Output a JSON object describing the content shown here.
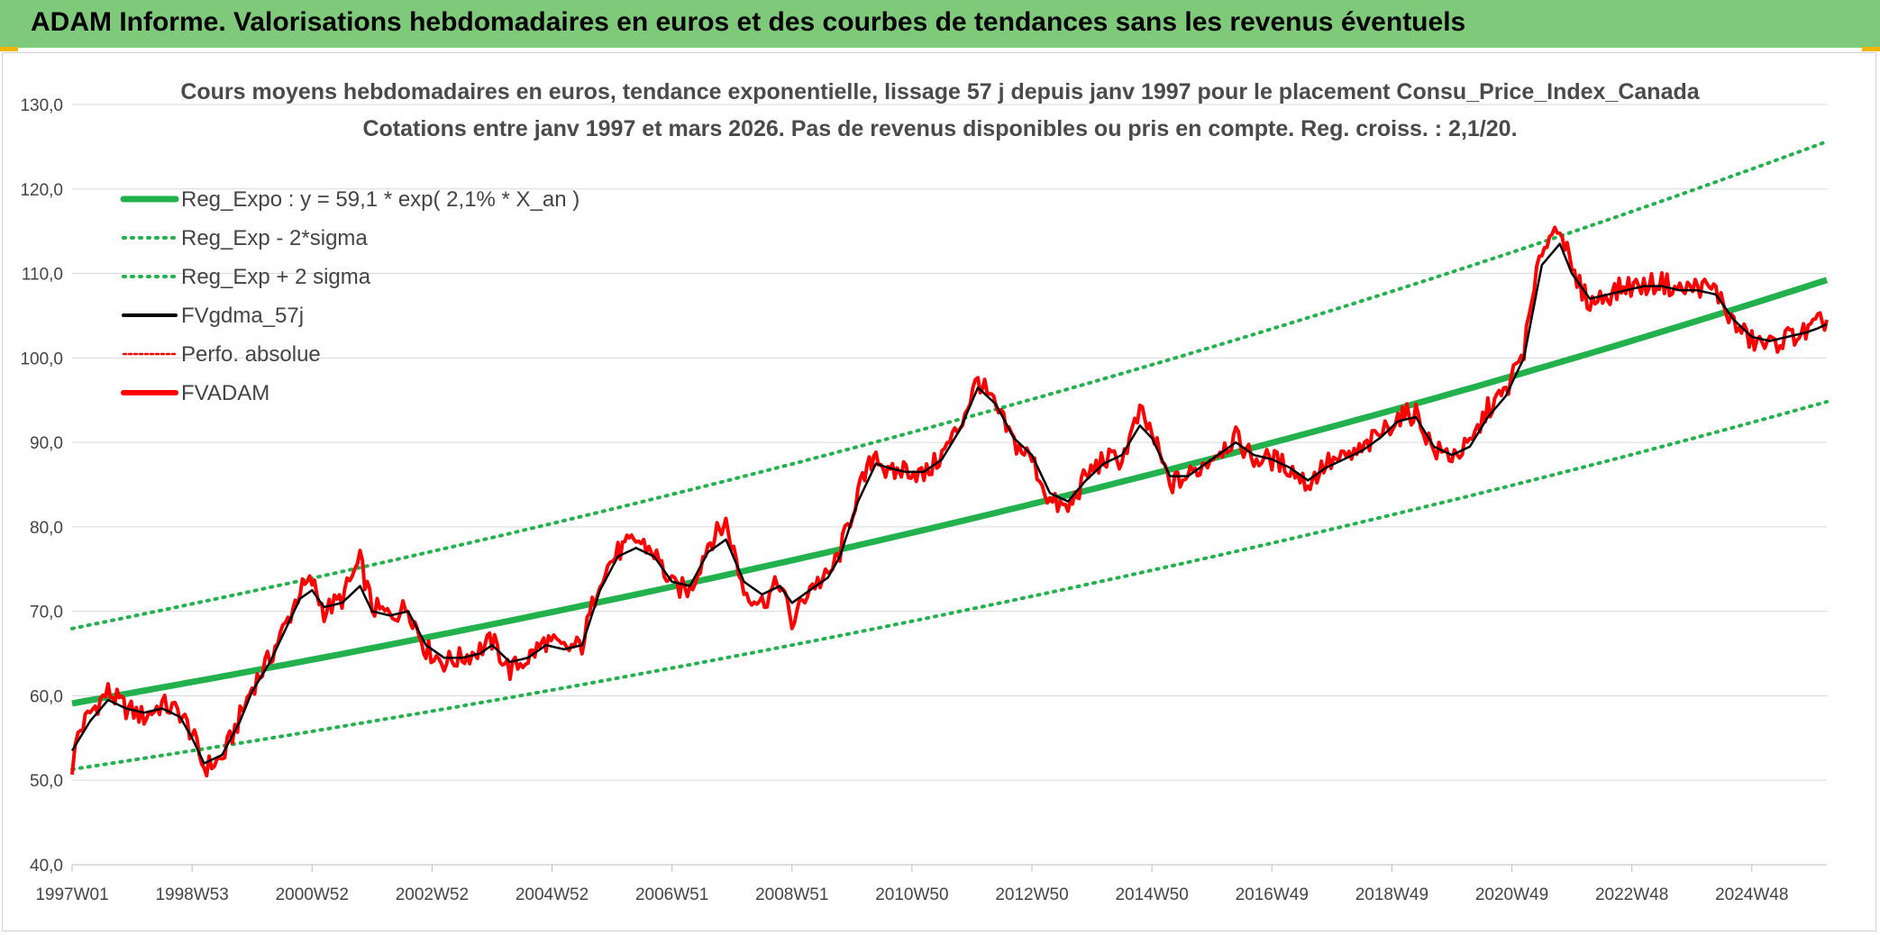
{
  "header": {
    "title": "ADAM Informe. Valorisations hebdomadaires en euros et des courbes de tendances sans les revenus éventuels"
  },
  "colors": {
    "header_bg": "#7fc97a",
    "green": "#22b14c",
    "red": "#ff0000",
    "black": "#000000",
    "grid": "#d9d9d9"
  },
  "chart_data": {
    "type": "line",
    "title": "Cours moyens hebdomadaires en euros, tendance exponentielle, lissage 57 j depuis janv 1997 pour le placement Consu_Price_Index_Canada",
    "subtitle": "Cotations entre janv 1997 et mars 2026. Pas de revenus disponibles ou pris en compte. Reg. croiss. : 2,1/20.",
    "ylim": [
      40,
      130
    ],
    "yticks": [
      "40,0",
      "50,0",
      "60,0",
      "70,0",
      "80,0",
      "90,0",
      "100,0",
      "110,0",
      "120,0",
      "130,0"
    ],
    "xlim": [
      1997.0,
      2026.25
    ],
    "xticks": [
      {
        "label": "1997W01",
        "x": 1997.0
      },
      {
        "label": "1998W53",
        "x": 1999.0
      },
      {
        "label": "2000W52",
        "x": 2001.0
      },
      {
        "label": "2002W52",
        "x": 2003.0
      },
      {
        "label": "2004W52",
        "x": 2005.0
      },
      {
        "label": "2006W51",
        "x": 2007.0
      },
      {
        "label": "2008W51",
        "x": 2009.0
      },
      {
        "label": "2010W50",
        "x": 2011.0
      },
      {
        "label": "2012W50",
        "x": 2013.0
      },
      {
        "label": "2014W50",
        "x": 2015.0
      },
      {
        "label": "2016W49",
        "x": 2017.0
      },
      {
        "label": "2018W49",
        "x": 2019.0
      },
      {
        "label": "2020W49",
        "x": 2021.0
      },
      {
        "label": "2022W48",
        "x": 2023.0
      },
      {
        "label": "2024W48",
        "x": 2025.0
      }
    ],
    "legend": [
      {
        "label": "Reg_Expo : y = 59,1 * exp( 2,1% *  X_an )",
        "style": "thick-green"
      },
      {
        "label": "Reg_Exp - 2*sigma",
        "style": "dotted-green"
      },
      {
        "label": "Reg_Exp + 2 sigma",
        "style": "dotted-green"
      },
      {
        "label": "FVgdma_57j",
        "style": "black"
      },
      {
        "label": "Perfo. absolue",
        "style": "dotted-red"
      },
      {
        "label": "FVADAM",
        "style": "thick-red"
      }
    ],
    "regression": {
      "a": 59.1,
      "rate": 0.021,
      "lower_factor": 0.868,
      "upper_factor": 1.15
    },
    "series": [
      {
        "name": "FVADAM",
        "x": [
          1997.0,
          1997.1,
          1997.3,
          1997.6,
          1997.9,
          1998.2,
          1998.5,
          1998.8,
          1999.0,
          1999.2,
          1999.5,
          1999.8,
          2000.0,
          2000.3,
          2000.6,
          2000.8,
          2001.0,
          2001.2,
          2001.5,
          2001.8,
          2002.0,
          2002.3,
          2002.6,
          2002.9,
          2003.2,
          2003.5,
          2003.8,
          2004.0,
          2004.3,
          2004.6,
          2004.9,
          2005.2,
          2005.5,
          2005.8,
          2006.1,
          2006.4,
          2006.7,
          2007.0,
          2007.3,
          2007.6,
          2007.9,
          2008.2,
          2008.5,
          2008.8,
          2009.0,
          2009.3,
          2009.6,
          2009.8,
          2010.1,
          2010.4,
          2010.6,
          2010.9,
          2011.2,
          2011.5,
          2011.8,
          2012.1,
          2012.4,
          2012.7,
          2013.0,
          2013.3,
          2013.6,
          2013.9,
          2014.2,
          2014.5,
          2014.8,
          2015.0,
          2015.3,
          2015.6,
          2015.8,
          2016.1,
          2016.4,
          2016.7,
          2017.0,
          2017.3,
          2017.6,
          2017.9,
          2018.2,
          2018.5,
          2018.8,
          2019.1,
          2019.4,
          2019.7,
          2020.0,
          2020.3,
          2020.6,
          2020.9,
          2021.2,
          2021.5,
          2021.8,
          2022.0,
          2022.3,
          2022.6,
          2022.9,
          2023.2,
          2023.5,
          2023.8,
          2024.1,
          2024.4,
          2024.7,
          2025.0,
          2025.3,
          2025.6,
          2025.9,
          2026.1,
          2026.25
        ],
        "y": [
          51.5,
          55.5,
          58.0,
          60.5,
          58.5,
          57.5,
          59.0,
          58.0,
          55.5,
          51.5,
          52.5,
          57.5,
          61.0,
          64.5,
          69.0,
          72.5,
          73.5,
          70.0,
          71.5,
          76.0,
          70.5,
          69.5,
          70.5,
          65.5,
          64.0,
          64.5,
          65.5,
          66.5,
          63.0,
          64.5,
          66.5,
          65.5,
          66.0,
          74.0,
          77.0,
          78.5,
          77.0,
          73.0,
          72.5,
          78.0,
          80.5,
          72.5,
          71.0,
          73.5,
          68.5,
          73.0,
          74.0,
          77.0,
          84.0,
          89.0,
          86.0,
          87.0,
          86.0,
          88.5,
          92.0,
          97.5,
          94.0,
          90.0,
          88.0,
          83.0,
          82.0,
          86.0,
          88.0,
          88.0,
          93.5,
          91.0,
          85.0,
          86.0,
          87.0,
          89.0,
          90.5,
          88.0,
          88.0,
          87.0,
          85.0,
          87.5,
          88.0,
          89.0,
          91.0,
          93.0,
          93.5,
          89.0,
          88.5,
          89.5,
          94.0,
          96.0,
          101.0,
          113.0,
          116.0,
          110.0,
          106.5,
          107.5,
          108.5,
          108.5,
          109.0,
          108.0,
          108.5,
          108.0,
          104.0,
          102.0,
          101.5,
          102.5,
          103.0,
          104.0,
          104.5
        ]
      },
      {
        "name": "FVgdma_57j",
        "x": [
          1997.0,
          1997.3,
          1997.6,
          1997.9,
          1998.2,
          1998.5,
          1998.8,
          1999.0,
          1999.2,
          1999.5,
          1999.8,
          2000.0,
          2000.3,
          2000.6,
          2000.8,
          2001.0,
          2001.2,
          2001.5,
          2001.8,
          2002.0,
          2002.3,
          2002.6,
          2002.9,
          2003.2,
          2003.5,
          2003.8,
          2004.0,
          2004.3,
          2004.6,
          2004.9,
          2005.2,
          2005.5,
          2005.8,
          2006.1,
          2006.4,
          2006.7,
          2007.0,
          2007.3,
          2007.6,
          2007.9,
          2008.2,
          2008.5,
          2008.8,
          2009.0,
          2009.3,
          2009.6,
          2009.8,
          2010.1,
          2010.4,
          2010.6,
          2010.9,
          2011.2,
          2011.5,
          2011.8,
          2012.1,
          2012.4,
          2012.7,
          2013.0,
          2013.3,
          2013.6,
          2013.9,
          2014.2,
          2014.5,
          2014.8,
          2015.0,
          2015.3,
          2015.6,
          2015.8,
          2016.1,
          2016.4,
          2016.7,
          2017.0,
          2017.3,
          2017.6,
          2017.9,
          2018.2,
          2018.5,
          2018.8,
          2019.1,
          2019.4,
          2019.7,
          2020.0,
          2020.3,
          2020.6,
          2020.9,
          2021.2,
          2021.5,
          2021.8,
          2022.0,
          2022.3,
          2022.6,
          2022.9,
          2023.2,
          2023.5,
          2023.8,
          2024.1,
          2024.4,
          2024.7,
          2025.0,
          2025.3,
          2025.6,
          2025.9,
          2026.1,
          2026.25
        ],
        "y": [
          53.5,
          57.0,
          59.5,
          58.5,
          58.0,
          58.5,
          57.5,
          55.0,
          52.0,
          53.0,
          57.0,
          60.5,
          64.0,
          68.5,
          71.5,
          72.5,
          70.5,
          71.0,
          73.0,
          70.0,
          69.5,
          70.0,
          66.0,
          64.5,
          64.5,
          65.0,
          66.0,
          64.0,
          64.5,
          66.0,
          65.5,
          66.0,
          72.5,
          76.5,
          77.5,
          76.5,
          73.5,
          73.0,
          77.0,
          78.5,
          73.5,
          72.0,
          73.0,
          71.0,
          72.5,
          74.0,
          76.5,
          83.0,
          87.5,
          87.0,
          86.5,
          86.5,
          88.0,
          91.5,
          96.5,
          94.5,
          90.5,
          88.5,
          84.0,
          83.0,
          85.5,
          87.5,
          88.5,
          92.0,
          90.5,
          86.0,
          86.0,
          87.0,
          88.5,
          90.0,
          88.5,
          88.0,
          87.0,
          85.5,
          87.0,
          88.0,
          89.0,
          90.5,
          92.5,
          93.0,
          89.5,
          88.5,
          89.5,
          93.0,
          95.5,
          100.0,
          111.0,
          113.5,
          110.0,
          107.0,
          107.5,
          108.0,
          108.5,
          108.5,
          108.0,
          108.0,
          107.5,
          104.5,
          102.5,
          102.0,
          102.5,
          103.0,
          103.5,
          104.0
        ]
      }
    ]
  }
}
